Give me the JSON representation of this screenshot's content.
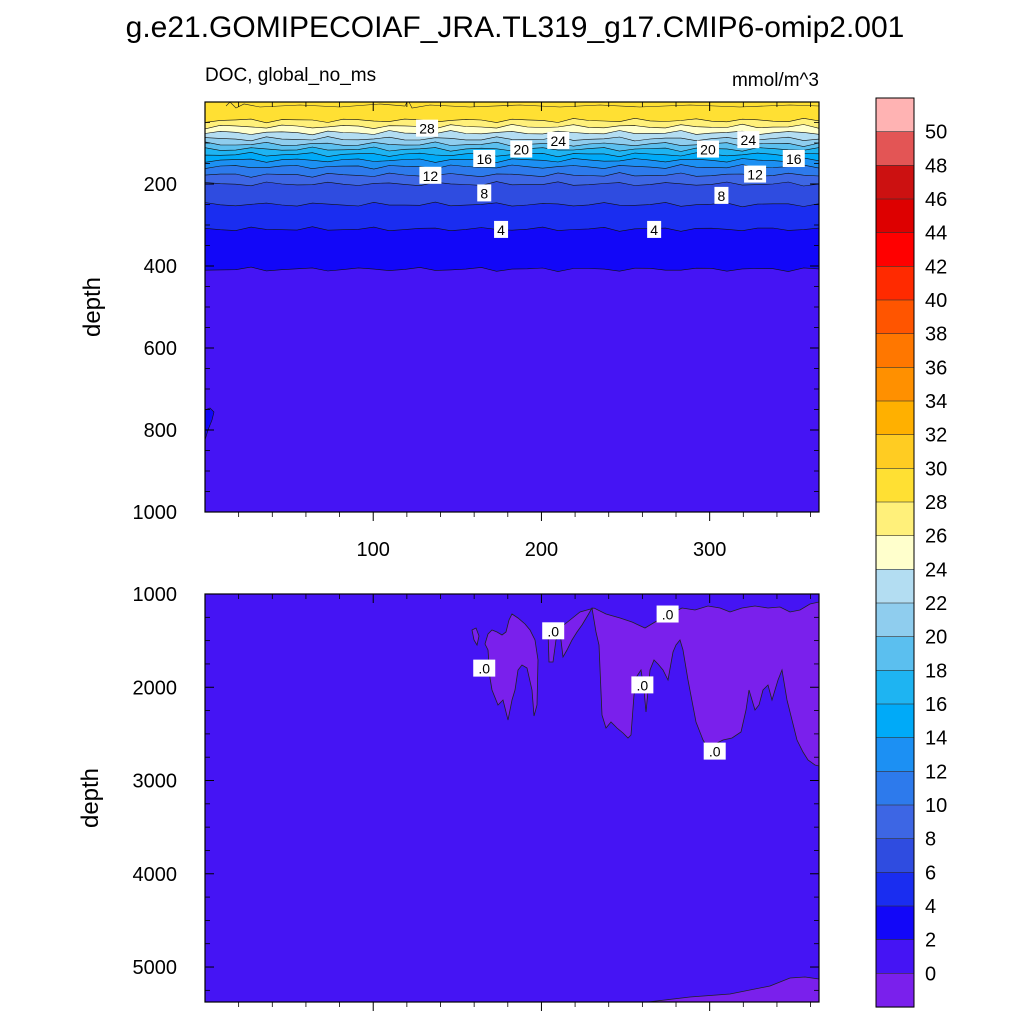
{
  "figure": {
    "title": "g.e21.GOMIPECOIAF_JRA.TL319_g17.CMIP6-omip2.001"
  },
  "chart_data": [
    {
      "type": "heatmap",
      "subtitle_left": "DOC, global_no_ms",
      "subtitle_right": "mmol/m^3",
      "xlabel": "",
      "ylabel": "depth",
      "xlim": [
        0,
        365
      ],
      "ylim": [
        0,
        1000
      ],
      "y_reversed": true,
      "xticks": [
        100,
        200,
        300
      ],
      "yticks": [
        200,
        400,
        600,
        800,
        1000
      ],
      "layers": [
        {
          "value_range": [
            28,
            30
          ],
          "depth_top": 0,
          "depth_bottom": 45
        },
        {
          "value_range": [
            26,
            28
          ],
          "depth_top": 45,
          "depth_bottom": 60
        },
        {
          "value_range": [
            24,
            26
          ],
          "depth_top": 60,
          "depth_bottom": 75
        },
        {
          "value_range": [
            22,
            24
          ],
          "depth_top": 75,
          "depth_bottom": 90
        },
        {
          "value_range": [
            20,
            22
          ],
          "depth_top": 90,
          "depth_bottom": 103
        },
        {
          "value_range": [
            18,
            20
          ],
          "depth_top": 103,
          "depth_bottom": 115
        },
        {
          "value_range": [
            16,
            18
          ],
          "depth_top": 115,
          "depth_bottom": 128
        },
        {
          "value_range": [
            14,
            16
          ],
          "depth_top": 128,
          "depth_bottom": 142
        },
        {
          "value_range": [
            12,
            14
          ],
          "depth_top": 142,
          "depth_bottom": 158
        },
        {
          "value_range": [
            10,
            12
          ],
          "depth_top": 158,
          "depth_bottom": 178
        },
        {
          "value_range": [
            8,
            10
          ],
          "depth_top": 178,
          "depth_bottom": 200
        },
        {
          "value_range": [
            6,
            8
          ],
          "depth_top": 200,
          "depth_bottom": 250
        },
        {
          "value_range": [
            4,
            6
          ],
          "depth_top": 250,
          "depth_bottom": 310
        },
        {
          "value_range": [
            2,
            4
          ],
          "depth_top": 310,
          "depth_bottom": 408
        },
        {
          "value_range": [
            0,
            2
          ],
          "depth_top": 408,
          "depth_bottom": 1000
        }
      ],
      "contour_labels": [
        {
          "text": "28",
          "x": 132,
          "depth": 65
        },
        {
          "text": "24",
          "x": 210,
          "depth": 95
        },
        {
          "text": "24",
          "x": 323,
          "depth": 93
        },
        {
          "text": "20",
          "x": 188,
          "depth": 116
        },
        {
          "text": "20",
          "x": 299,
          "depth": 116
        },
        {
          "text": "16",
          "x": 166,
          "depth": 139
        },
        {
          "text": "16",
          "x": 350,
          "depth": 139
        },
        {
          "text": "12",
          "x": 134,
          "depth": 180
        },
        {
          "text": "12",
          "x": 327,
          "depth": 177
        },
        {
          "text": "8",
          "x": 166,
          "depth": 223
        },
        {
          "text": "8",
          "x": 307,
          "depth": 229
        },
        {
          "text": "4",
          "x": 176,
          "depth": 312
        },
        {
          "text": "4",
          "x": 267,
          "depth": 312
        }
      ]
    },
    {
      "type": "heatmap",
      "xlabel": "",
      "ylabel": "depth",
      "xlim": [
        0,
        365
      ],
      "ylim": [
        1000,
        5375
      ],
      "y_reversed": true,
      "xticks": [],
      "yticks": [
        1000,
        2000,
        3000,
        4000,
        5000
      ],
      "background_value_range": [
        0,
        2
      ],
      "negative_region_value_range": [
        -2,
        0
      ],
      "contour_labels": [
        {
          "text": ".0",
          "x": 166,
          "depth": 1800
        },
        {
          "text": ".0",
          "x": 207,
          "depth": 1400
        },
        {
          "text": ".0",
          "x": 275,
          "depth": 1220
        },
        {
          "text": ".0",
          "x": 260,
          "depth": 1980
        },
        {
          "text": ".0",
          "x": 303,
          "depth": 2690
        }
      ]
    }
  ],
  "colorbar": {
    "labels": [
      "50",
      "48",
      "46",
      "44",
      "42",
      "40",
      "38",
      "36",
      "34",
      "32",
      "30",
      "28",
      "26",
      "24",
      "22",
      "20",
      "18",
      "16",
      "14",
      "12",
      "10",
      "8",
      "6",
      "4",
      "2",
      "0"
    ],
    "colors": [
      "#FFB3B3",
      "#E35555",
      "#CC1111",
      "#DD0000",
      "#FF0000",
      "#FF2A00",
      "#FF5500",
      "#FF7700",
      "#FF9000",
      "#FFB000",
      "#FFCC22",
      "#FFE033",
      "#FFF07A",
      "#FFFFCC",
      "#B3DDF2",
      "#8FCDEE",
      "#5BBFEF",
      "#1EB4F2",
      "#00AAF8",
      "#1C90F3",
      "#2D7AEC",
      "#3D66E4",
      "#2F4CE0",
      "#1A2DF0",
      "#1207F8",
      "#4514F4",
      "#7A20EC"
    ],
    "negative_color": "#7A20EC"
  }
}
